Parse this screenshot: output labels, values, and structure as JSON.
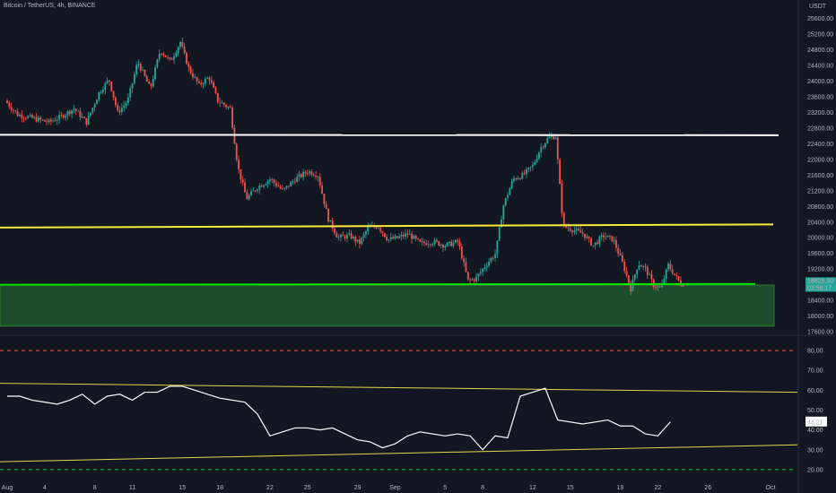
{
  "header": {
    "title": "Bitcoin / TetherUS, 4h, BINANCE"
  },
  "chart_data": [
    {
      "type": "candlestick",
      "title": "Bitcoin / TetherUS, 4h, BINANCE",
      "currency_label": "USDT",
      "ylim": [
        17600,
        25800
      ],
      "y_ticks": [
        25600,
        25200,
        24800,
        24400,
        24000,
        23600,
        23200,
        22800,
        22400,
        22000,
        21600,
        21200,
        20800,
        20400,
        20000,
        19600,
        19200,
        18800,
        18400,
        18000,
        17600
      ],
      "y_tick_labels": [
        "25600.00",
        "25200.00",
        "24800.00",
        "24400.00",
        "24000.00",
        "23600.00",
        "23200.00",
        "22800.00",
        "22400.00",
        "22000.00",
        "21600.00",
        "21200.00",
        "20800.00",
        "20400.00",
        "20000.00",
        "19600.00",
        "19200.00",
        "18800.00",
        "18400.00",
        "18000.00",
        "17600.00"
      ],
      "x_tick_labels": [
        {
          "label": "Aug",
          "day": 0
        },
        {
          "label": "4",
          "day": 3
        },
        {
          "label": "8",
          "day": 7
        },
        {
          "label": "11",
          "day": 10
        },
        {
          "label": "15",
          "day": 14
        },
        {
          "label": "18",
          "day": 17
        },
        {
          "label": "22",
          "day": 21
        },
        {
          "label": "25",
          "day": 24
        },
        {
          "label": "29",
          "day": 28
        },
        {
          "label": "Sep",
          "day": 31
        },
        {
          "label": "5",
          "day": 35
        },
        {
          "label": "8",
          "day": 38
        },
        {
          "label": "12",
          "day": 42
        },
        {
          "label": "15",
          "day": 45
        },
        {
          "label": "19",
          "day": 49
        },
        {
          "label": "22",
          "day": 52
        },
        {
          "label": "26",
          "day": 56
        },
        {
          "label": "Oct",
          "day": 61
        }
      ],
      "candle_closes_anchor": [
        {
          "day": 0,
          "price": 23500
        },
        {
          "day": 1,
          "price": 23150
        },
        {
          "day": 3.5,
          "price": 22950
        },
        {
          "day": 4.5,
          "price": 23100
        },
        {
          "day": 5.5,
          "price": 23300
        },
        {
          "day": 6.5,
          "price": 22950
        },
        {
          "day": 7.5,
          "price": 23700
        },
        {
          "day": 8.3,
          "price": 24050
        },
        {
          "day": 9,
          "price": 23200
        },
        {
          "day": 9.8,
          "price": 23500
        },
        {
          "day": 10.6,
          "price": 24500
        },
        {
          "day": 11.6,
          "price": 23800
        },
        {
          "day": 12.4,
          "price": 24800
        },
        {
          "day": 13.2,
          "price": 24500
        },
        {
          "day": 14,
          "price": 25000
        },
        {
          "day": 14.7,
          "price": 24300
        },
        {
          "day": 15.5,
          "price": 23900
        },
        {
          "day": 16.3,
          "price": 24100
        },
        {
          "day": 17,
          "price": 23500
        },
        {
          "day": 18,
          "price": 23300
        },
        {
          "day": 18.6,
          "price": 21800
        },
        {
          "day": 19.3,
          "price": 21000
        },
        {
          "day": 20.2,
          "price": 21300
        },
        {
          "day": 21.2,
          "price": 21500
        },
        {
          "day": 22.2,
          "price": 21200
        },
        {
          "day": 23.2,
          "price": 21500
        },
        {
          "day": 24.2,
          "price": 21700
        },
        {
          "day": 25,
          "price": 21600
        },
        {
          "day": 25.8,
          "price": 20500
        },
        {
          "day": 26.6,
          "price": 20000
        },
        {
          "day": 27.6,
          "price": 20050
        },
        {
          "day": 28.3,
          "price": 19850
        },
        {
          "day": 29,
          "price": 20250
        },
        {
          "day": 29.8,
          "price": 20300
        },
        {
          "day": 30.6,
          "price": 19950
        },
        {
          "day": 31.4,
          "price": 20000
        },
        {
          "day": 32.2,
          "price": 20100
        },
        {
          "day": 33.2,
          "price": 19850
        },
        {
          "day": 34.2,
          "price": 19900
        },
        {
          "day": 35.2,
          "price": 19800
        },
        {
          "day": 36.2,
          "price": 19900
        },
        {
          "day": 37,
          "price": 18900
        },
        {
          "day": 37.6,
          "price": 18950
        },
        {
          "day": 38.4,
          "price": 19300
        },
        {
          "day": 39.2,
          "price": 19600
        },
        {
          "day": 39.8,
          "price": 20800
        },
        {
          "day": 40.6,
          "price": 21500
        },
        {
          "day": 41.4,
          "price": 21600
        },
        {
          "day": 42.2,
          "price": 21850
        },
        {
          "day": 42.8,
          "price": 22300
        },
        {
          "day": 43.4,
          "price": 22550
        },
        {
          "day": 44,
          "price": 22600
        },
        {
          "day": 44.6,
          "price": 20300
        },
        {
          "day": 45.4,
          "price": 20200
        },
        {
          "day": 46.2,
          "price": 20100
        },
        {
          "day": 47,
          "price": 19800
        },
        {
          "day": 47.8,
          "price": 20050
        },
        {
          "day": 48.6,
          "price": 19950
        },
        {
          "day": 49.4,
          "price": 19300
        },
        {
          "day": 50,
          "price": 18700
        },
        {
          "day": 50.6,
          "price": 19350
        },
        {
          "day": 51.2,
          "price": 19200
        },
        {
          "day": 51.8,
          "price": 18800
        },
        {
          "day": 52.4,
          "price": 18700
        },
        {
          "day": 53,
          "price": 19300
        },
        {
          "day": 53.6,
          "price": 19000
        },
        {
          "day": 54,
          "price": 18826.9
        }
      ],
      "last_price_label": "18826.90",
      "countdown_label": "03:58:17",
      "horizontal_lines": [
        {
          "name": "resistance-white",
          "color": "#ffffff",
          "price_start": 22630,
          "price_end": 22620
        },
        {
          "name": "resistance-yellow",
          "color": "#ffeb3b",
          "price_start": 20260,
          "price_end": 20340
        },
        {
          "name": "support-green",
          "color": "#00e600",
          "price_start": 18800,
          "price_end": 18820
        }
      ],
      "support_zone": {
        "color": "#1e4d2b",
        "price_top": 18790,
        "price_bottom": 17740
      },
      "colors": {
        "up": "#26a69a",
        "down": "#ef5350",
        "background": "#131722"
      }
    },
    {
      "type": "line",
      "title": "",
      "ylim": [
        15,
        85
      ],
      "y_ticks": [
        80,
        70,
        60,
        50,
        40,
        30,
        20
      ],
      "y_tick_labels": [
        "80.00",
        "70.00",
        "60.00",
        "50.00",
        "40.00",
        "30.00",
        "20.00"
      ],
      "reference_lines": [
        {
          "value": 80,
          "color": "#ef5350",
          "style": "dashed"
        },
        {
          "value": 20,
          "color": "#00c853",
          "style": "dashed"
        }
      ],
      "series": [
        {
          "color": "#ffffff",
          "x": [
            0,
            1,
            2,
            3,
            4,
            5,
            6,
            7,
            8,
            9,
            10,
            11,
            12,
            13,
            14,
            15,
            16,
            17,
            18,
            19,
            20,
            21,
            22,
            23,
            24,
            25,
            26,
            27,
            28,
            29,
            30,
            31,
            32,
            33,
            34,
            35,
            36,
            37,
            38,
            39,
            40,
            41,
            42,
            43,
            44,
            45,
            46,
            47,
            48,
            49,
            50,
            51,
            52,
            53
          ],
          "y": [
            57,
            57,
            55,
            54,
            53,
            55,
            58,
            53,
            57,
            58,
            55,
            59,
            59,
            62,
            62,
            60,
            58,
            56,
            55,
            54,
            48,
            37,
            39,
            41,
            41,
            40,
            41,
            38,
            35,
            34,
            31,
            33,
            37,
            39,
            38,
            37,
            38,
            37,
            30,
            37,
            36,
            57,
            59,
            61,
            45,
            44,
            43,
            44,
            45,
            42,
            42,
            38,
            37,
            44
          ]
        }
      ],
      "trendlines": [
        {
          "name": "upper",
          "color": "#e6d84a",
          "x_start": 0,
          "y_start": 63.5,
          "x_end": 58,
          "y_end": 59
        },
        {
          "name": "lower",
          "color": "#e6d84a",
          "x_start": 0,
          "y_start": 24,
          "x_end": 58,
          "y_end": 32.5
        }
      ],
      "last_value_label": "44.21"
    }
  ]
}
